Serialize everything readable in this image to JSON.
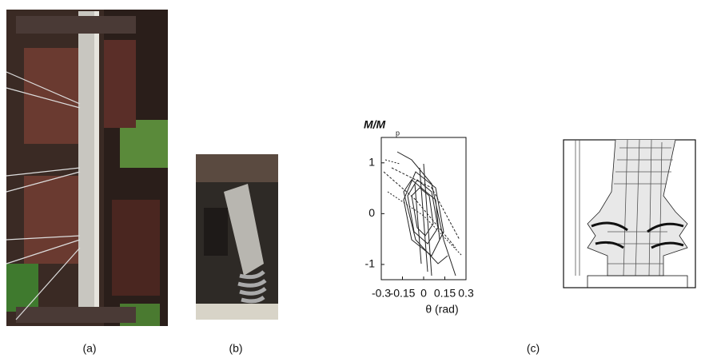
{
  "figure": {
    "panels": [
      {
        "label": "(a)"
      },
      {
        "label": "(b)"
      },
      {
        "label": "(c)"
      }
    ],
    "plot": {
      "y_label": "M/M",
      "y_label_sub": "p",
      "x_label": "θ (rad)",
      "xlim": [
        -0.3,
        0.3
      ],
      "ylim": [
        -1.3,
        1.5
      ],
      "xticks": [
        -0.3,
        -0.15,
        0,
        0.15,
        0.3
      ],
      "yticks": [
        -1,
        0,
        1
      ]
    }
  }
}
